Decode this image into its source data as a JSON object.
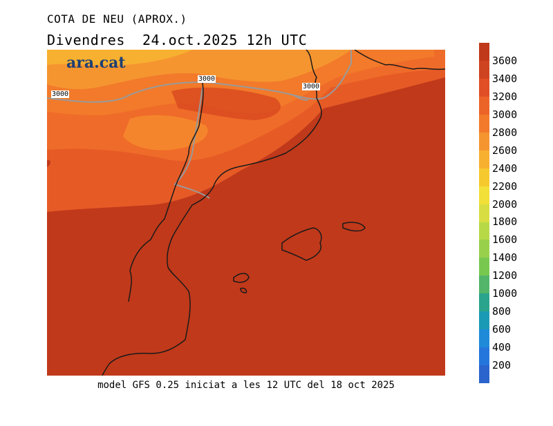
{
  "header": {
    "title": "COTA DE NEU (APROX.)",
    "subtitle": "Divendres  24.oct.2025 12h UTC"
  },
  "logo": {
    "text": "ara.cat"
  },
  "contour_labels": [
    "3000",
    "3000",
    "3000"
  ],
  "caption": "model GFS 0.25 iniciat a les 12 UTC del 18 oct 2025",
  "legend": {
    "ticks": [
      "3600",
      "3400",
      "3200",
      "3000",
      "2800",
      "2600",
      "2400",
      "2200",
      "2000",
      "1800",
      "1600",
      "1400",
      "1200",
      "1000",
      "800",
      "600",
      "400",
      "200"
    ],
    "colors": [
      "#c0391a",
      "#cf4420",
      "#e04f25",
      "#ec6428",
      "#f27a2a",
      "#f59530",
      "#f8b030",
      "#f6c92e",
      "#f2df38",
      "#d8de42",
      "#b8d946",
      "#98d04c",
      "#78c850",
      "#52b56a",
      "#2aa48c",
      "#1a9ab4",
      "#1e8ad8",
      "#2576dc",
      "#2a64cc"
    ]
  },
  "colors": {
    "background_main": "#c0391a",
    "northern_high": "#e65a26",
    "peak": "#f59530",
    "coast": "#1a1a1a",
    "border": "#9a9a9a"
  }
}
